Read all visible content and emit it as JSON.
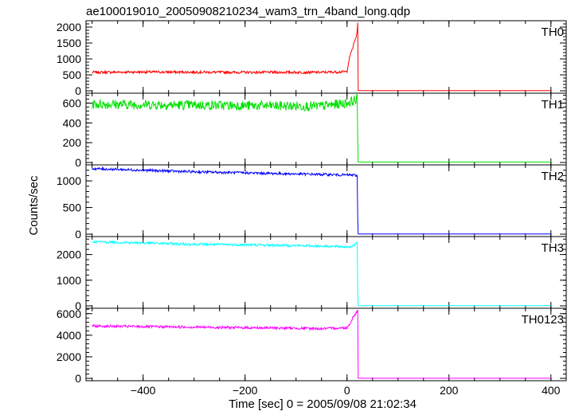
{
  "title": "ae100019010_20050908210234_wam3_trn_4band_long.qdp",
  "xlabel": "Time [sec] 0 = 2005/09/08 21:02:34",
  "ylabel": "Counts/sec",
  "chart_data": {
    "type": "line",
    "title": "ae100019010_20050908210234_wam3_trn_4band_long.qdp",
    "xlabel": "Time [sec] 0 = 2005/09/08 21:02:34",
    "ylabel": "Counts/sec",
    "xlim": [
      -512,
      430
    ],
    "x_ticks": [
      -400,
      -200,
      0,
      200,
      400
    ],
    "grid": false,
    "series": [
      {
        "name": "TH0",
        "color": "#ff0000",
        "ylim": [
          0,
          2200
        ],
        "y_ticks": [
          0,
          500,
          1000,
          1500,
          2000
        ],
        "x": [
          -500,
          -400,
          -300,
          -200,
          -100,
          -50,
          0,
          3,
          6,
          10,
          14,
          18,
          20,
          21,
          22,
          30,
          100,
          200,
          300,
          400
        ],
        "values": [
          580,
          590,
          585,
          580,
          580,
          580,
          600,
          900,
          1100,
          1300,
          1500,
          1700,
          1900,
          2100,
          5,
          5,
          5,
          5,
          5,
          5
        ]
      },
      {
        "name": "TH1",
        "color": "#00e000",
        "ylim": [
          0,
          700
        ],
        "y_ticks": [
          0,
          200,
          400,
          600
        ],
        "x": [
          -500,
          -400,
          -300,
          -200,
          -100,
          -50,
          0,
          10,
          20,
          21,
          22,
          30,
          100,
          200,
          300,
          400
        ],
        "values": [
          590,
          585,
          580,
          575,
          570,
          570,
          600,
          620,
          640,
          200,
          5,
          5,
          5,
          5,
          5,
          5
        ]
      },
      {
        "name": "TH2",
        "color": "#0000ff",
        "ylim": [
          0,
          1300
        ],
        "y_ticks": [
          0,
          500,
          1000
        ],
        "x": [
          -500,
          -400,
          -300,
          -200,
          -100,
          -50,
          0,
          10,
          20,
          21,
          22,
          30,
          100,
          200,
          300,
          400
        ],
        "values": [
          1230,
          1200,
          1170,
          1150,
          1130,
          1120,
          1110,
          1110,
          1100,
          300,
          5,
          5,
          5,
          5,
          5,
          5
        ]
      },
      {
        "name": "TH3",
        "color": "#00ffff",
        "ylim": [
          0,
          2700
        ],
        "y_ticks": [
          0,
          1000,
          2000
        ],
        "x": [
          -500,
          -400,
          -300,
          -200,
          -100,
          -50,
          0,
          10,
          20,
          21,
          22,
          30,
          100,
          200,
          300,
          400
        ],
        "values": [
          2500,
          2450,
          2400,
          2380,
          2350,
          2330,
          2300,
          2320,
          2450,
          600,
          5,
          5,
          5,
          5,
          5,
          5
        ]
      },
      {
        "name": "TH0123",
        "color": "#ff00ff",
        "ylim": [
          0,
          6500
        ],
        "y_ticks": [
          0,
          2000,
          4000,
          6000
        ],
        "x": [
          -500,
          -400,
          -300,
          -200,
          -100,
          -50,
          0,
          5,
          10,
          15,
          20,
          21,
          22,
          30,
          100,
          200,
          300,
          400
        ],
        "values": [
          4850,
          4800,
          4750,
          4700,
          4650,
          4600,
          4700,
          5000,
          5500,
          5900,
          6200,
          6400,
          5,
          5,
          5,
          5,
          5,
          5
        ]
      }
    ]
  }
}
